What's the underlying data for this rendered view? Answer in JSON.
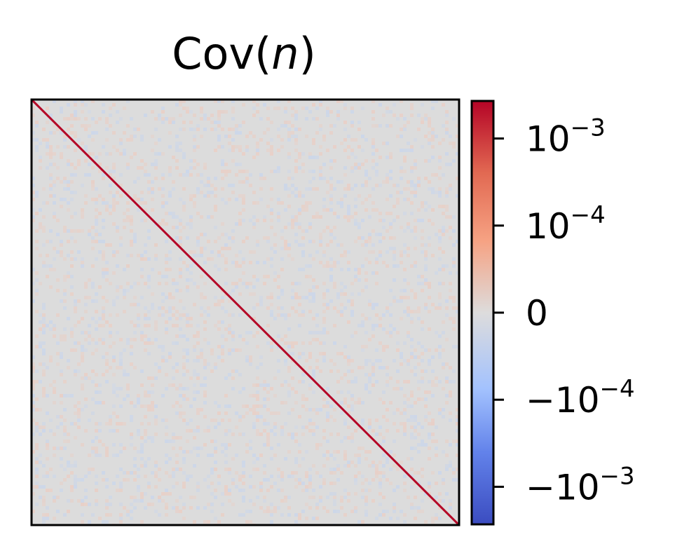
{
  "chart_data": {
    "type": "heatmap",
    "title": {
      "prefix": "Cov(",
      "variable": "n",
      "suffix": ")"
    },
    "matrix": {
      "description_free": true,
      "diagonal": "positive-large",
      "off_diagonal": "near-zero-noise"
    },
    "colorbar": {
      "colormap": "coolwarm",
      "scale": "symlog",
      "ticks": [
        {
          "value": 0.001,
          "base": "10",
          "exp": "−3",
          "sign": ""
        },
        {
          "value": 0.0001,
          "base": "10",
          "exp": "−4",
          "sign": ""
        },
        {
          "value": 0,
          "base": "0",
          "exp": "",
          "sign": ""
        },
        {
          "value": -0.0001,
          "base": "10",
          "exp": "−4",
          "sign": "−"
        },
        {
          "value": -0.001,
          "base": "10",
          "exp": "−3",
          "sign": "−"
        }
      ]
    },
    "colors": {
      "neutral": "#dcdcdc",
      "diagonal": "#b40426",
      "cmap_low": "#3b4cc0",
      "cmap_mid": "#dddddd",
      "cmap_high": "#b40426"
    }
  }
}
